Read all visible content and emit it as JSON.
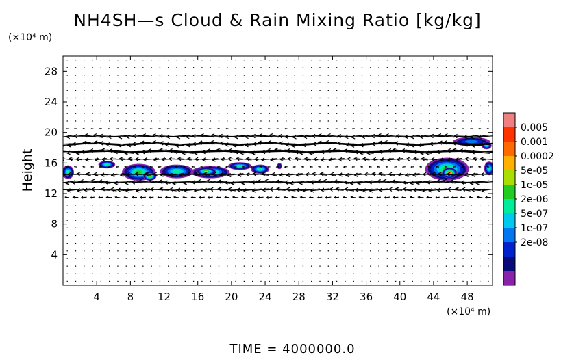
{
  "chart_data": {
    "type": "heatmap",
    "title": "NH4SH—s Cloud & Rain Mixing Ratio [kg/kg]",
    "ylabel": "Height",
    "xunit": "(×10⁴ m)",
    "yunit": "(×10⁴ m)",
    "xlim": [
      0,
      51
    ],
    "ylim": [
      0,
      30
    ],
    "xticks": [
      4,
      8,
      12,
      16,
      20,
      24,
      28,
      32,
      36,
      40,
      44,
      48
    ],
    "yticks": [
      4,
      8,
      12,
      16,
      20,
      24,
      28
    ],
    "grid": false,
    "legend_position": "right",
    "colorbar": {
      "labels": [
        "0.005",
        "0.001",
        "0.0002",
        "5e-05",
        "1e-05",
        "2e-06",
        "5e-07",
        "1e-07",
        "2e-08"
      ],
      "colors": [
        "#f08080",
        "#ff3300",
        "#ff6a00",
        "#ffb000",
        "#aadd00",
        "#22cc22",
        "#00ee99",
        "#00c8ee",
        "#0077ee",
        "#0022cc",
        "#0a0a7a",
        "#8822aa"
      ]
    },
    "cloud_blobs": [
      {
        "x": 0.6,
        "y": 14.8,
        "rx": 0.7,
        "ry": 0.9,
        "level": 6
      },
      {
        "x": 5.2,
        "y": 15.8,
        "rx": 1.0,
        "ry": 0.5,
        "level": 6
      },
      {
        "x": 9.0,
        "y": 14.8,
        "rx": 2.0,
        "ry": 1.1,
        "level": 5
      },
      {
        "x": 10.3,
        "y": 14.3,
        "rx": 0.8,
        "ry": 0.6,
        "level": 4
      },
      {
        "x": 13.5,
        "y": 14.9,
        "rx": 2.0,
        "ry": 0.9,
        "level": 6
      },
      {
        "x": 17.5,
        "y": 14.8,
        "rx": 2.3,
        "ry": 0.8,
        "level": 5
      },
      {
        "x": 17.0,
        "y": 14.9,
        "rx": 1.2,
        "ry": 0.5,
        "level": 4
      },
      {
        "x": 21.0,
        "y": 15.6,
        "rx": 1.4,
        "ry": 0.5,
        "level": 6
      },
      {
        "x": 23.4,
        "y": 15.2,
        "rx": 1.1,
        "ry": 0.6,
        "level": 6
      },
      {
        "x": 25.7,
        "y": 15.6,
        "rx": 0.3,
        "ry": 0.4,
        "level": 9
      },
      {
        "x": 45.6,
        "y": 15.2,
        "rx": 2.6,
        "ry": 1.5,
        "level": 5
      },
      {
        "x": 45.9,
        "y": 14.7,
        "rx": 0.9,
        "ry": 0.7,
        "level": 2
      },
      {
        "x": 48.5,
        "y": 18.8,
        "rx": 2.2,
        "ry": 0.6,
        "level": 8
      },
      {
        "x": 50.3,
        "y": 18.3,
        "rx": 0.6,
        "ry": 0.5,
        "level": 6
      },
      {
        "x": 50.6,
        "y": 15.3,
        "rx": 0.6,
        "ry": 0.9,
        "level": 6
      }
    ],
    "wind_layers": [
      {
        "y": 18.2,
        "u": -1.0,
        "strength": 1.0
      },
      {
        "y": 17.2,
        "u": -0.9,
        "strength": 0.9
      },
      {
        "y": 19.2,
        "u": -0.6,
        "strength": 0.7
      },
      {
        "y": 14.2,
        "u": -0.5,
        "strength": 0.6
      },
      {
        "y": 13.2,
        "u": -0.6,
        "strength": 0.6
      },
      {
        "y": 12.2,
        "u": -0.3,
        "strength": 0.4
      }
    ],
    "annotation": "TIME = 4000000.0"
  }
}
